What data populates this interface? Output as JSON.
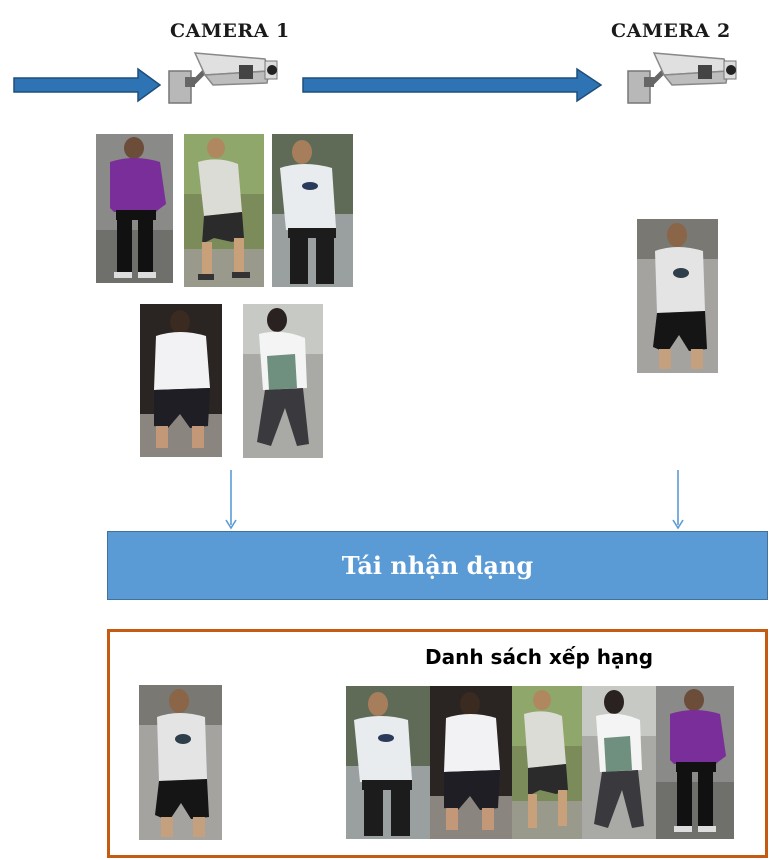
{
  "cameras": [
    {
      "label": "CAMERA 1",
      "icon": "cctv-camera-icon"
    },
    {
      "label": "CAMERA 2",
      "icon": "cctv-camera-icon"
    }
  ],
  "reid": {
    "label": "Tái nhận dạng"
  },
  "ranking": {
    "title": "Danh sách xếp hạng"
  },
  "colors": {
    "arrow_blue": "#2e74b5",
    "box_blue": "#5b9bd5",
    "rank_border": "#c55a11",
    "shirt_purple": "#7a2e9a",
    "shirt_white": "#eeeeee"
  }
}
